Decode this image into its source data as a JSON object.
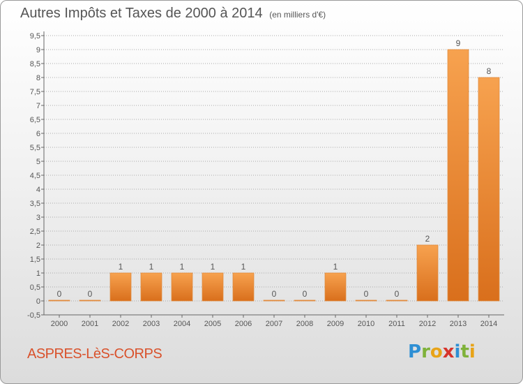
{
  "header": {
    "title": "Autres Impôts et Taxes de 2000 à 2014",
    "unit": "(en milliers d'€)"
  },
  "footer": {
    "commune": "ASPRES-LèS-CORPS",
    "brand_letters": [
      "P",
      "r",
      "o",
      "x",
      "i",
      "t",
      "i"
    ],
    "brand_colors": [
      "#2e8fd4",
      "#7fb23a",
      "#e8a317",
      "#d6342c",
      "#2e8fd4",
      "#7fb23a",
      "#e8a317"
    ]
  },
  "colors": {
    "bar_light": "#f7a24f",
    "bar_dark": "#d96f1c",
    "grid": "#aaaaaa"
  },
  "chart_data": {
    "type": "bar",
    "categories": [
      "2000",
      "2001",
      "2002",
      "2003",
      "2004",
      "2005",
      "2006",
      "2007",
      "2008",
      "2009",
      "2010",
      "2011",
      "2012",
      "2013",
      "2014"
    ],
    "values": [
      0,
      0,
      1,
      1,
      1,
      1,
      1,
      0,
      0,
      1,
      0,
      0,
      2,
      9,
      8
    ],
    "data_labels": [
      "0",
      "0",
      "1",
      "1",
      "1",
      "1",
      "1",
      "0",
      "0",
      "1",
      "0",
      "0",
      "2",
      "9",
      "8"
    ],
    "y_ticks": [
      "-0,5",
      "0",
      "0,5",
      "1",
      "1,5",
      "2",
      "2,5",
      "3",
      "3,5",
      "4",
      "4,5",
      "5",
      "5,5",
      "6",
      "6,5",
      "7",
      "7,5",
      "8",
      "8,5",
      "9",
      "9,5"
    ],
    "ylim": [
      -0.5,
      9.5
    ],
    "grid": true,
    "xlabel": "",
    "ylabel": ""
  }
}
